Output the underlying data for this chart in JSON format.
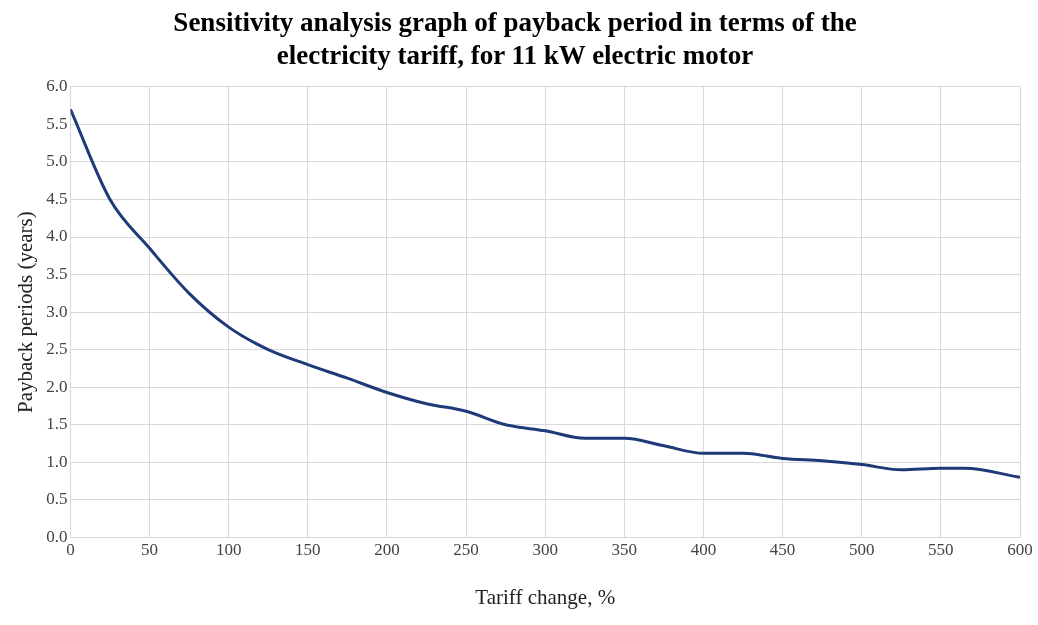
{
  "chart_data": {
    "type": "line",
    "title": "Sensitivity analysis graph of payback period in terms of the electricity tariff, for 11 kW electric motor",
    "xlabel": "Tariff change, %",
    "ylabel": "Payback periods (years)",
    "x": [
      0,
      25,
      50,
      75,
      100,
      125,
      150,
      175,
      200,
      225,
      250,
      275,
      300,
      325,
      350,
      375,
      400,
      425,
      450,
      475,
      500,
      525,
      550,
      565,
      600
    ],
    "series": [
      {
        "color": "#1f3a78",
        "values": [
          5.7,
          4.5,
          3.85,
          3.25,
          2.8,
          2.5,
          2.3,
          2.12,
          1.93,
          1.78,
          1.68,
          1.5,
          1.42,
          1.32,
          1.32,
          1.22,
          1.12,
          1.12,
          1.05,
          1.02,
          0.97,
          0.9,
          0.92,
          0.92,
          0.8
        ]
      }
    ],
    "xlim": [
      0,
      600
    ],
    "xticks": [
      0,
      50,
      100,
      150,
      200,
      250,
      300,
      350,
      400,
      450,
      500,
      550,
      600
    ],
    "ylim": [
      0,
      6
    ],
    "yticks": [
      {
        "value": 0,
        "label": "0.0"
      },
      {
        "value": 0.5,
        "label": "0.5"
      },
      {
        "value": 1,
        "label": "1.0"
      },
      {
        "value": 1.5,
        "label": "1.5"
      },
      {
        "value": 2,
        "label": "2.0"
      },
      {
        "value": 2.5,
        "label": "2.5"
      },
      {
        "value": 3,
        "label": "3.0"
      },
      {
        "value": 3.5,
        "label": "3.5"
      },
      {
        "value": 4,
        "label": "4.0"
      },
      {
        "value": 4.5,
        "label": "4.5"
      },
      {
        "value": 5,
        "label": "5.0"
      },
      {
        "value": 5.5,
        "label": "5.5"
      },
      {
        "value": 6,
        "label": "6.0"
      }
    ],
    "grid": true,
    "legend": false,
    "marker": "none",
    "line_style": "solid"
  }
}
